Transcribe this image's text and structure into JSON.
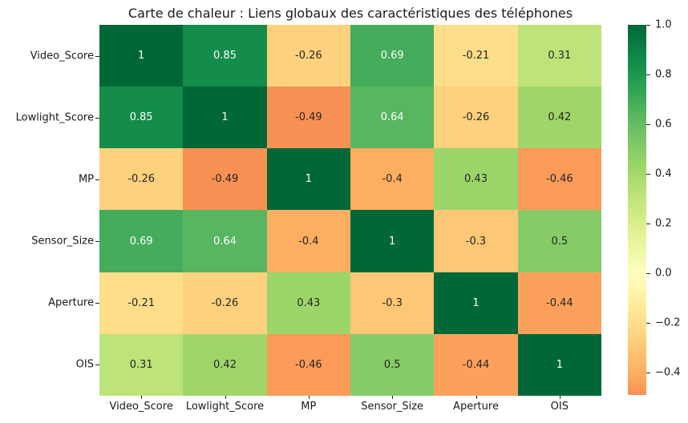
{
  "title": "Carte de chaleur : Liens globaux des caractéristiques des téléphones",
  "chart_data": {
    "type": "heatmap",
    "title": "Carte de chaleur : Liens globaux des caractéristiques des téléphones",
    "x_categories": [
      "Video_Score",
      "Lowlight_Score",
      "MP",
      "Sensor_Size",
      "Aperture",
      "OIS"
    ],
    "y_categories": [
      "Video_Score",
      "Lowlight_Score",
      "MP",
      "Sensor_Size",
      "Aperture",
      "OIS"
    ],
    "matrix": [
      [
        1,
        0.85,
        -0.26,
        0.69,
        -0.21,
        0.31
      ],
      [
        0.85,
        1,
        -0.49,
        0.64,
        -0.26,
        0.42
      ],
      [
        -0.26,
        -0.49,
        1,
        -0.4,
        0.43,
        -0.46
      ],
      [
        0.69,
        0.64,
        -0.4,
        1,
        -0.3,
        0.5
      ],
      [
        -0.21,
        -0.26,
        0.43,
        -0.3,
        1,
        -0.44
      ],
      [
        0.31,
        0.42,
        -0.46,
        0.5,
        -0.44,
        1
      ]
    ],
    "annotations_on": true,
    "grid": false,
    "colormap": {
      "name": "RdYlGn",
      "anchor_colors": [
        "#a50026",
        "#d73027",
        "#f46d43",
        "#fdae61",
        "#fee08b",
        "#ffffbf",
        "#d9ef8b",
        "#a6d96a",
        "#66bd63",
        "#1a9850",
        "#006837"
      ],
      "norm_domain": [
        -1,
        1
      ]
    },
    "colorbar": {
      "position": "right",
      "vmin": -0.49,
      "vmax": 1.0,
      "tick_values": [
        1.0,
        0.8,
        0.6,
        0.4,
        0.2,
        0.0,
        -0.2,
        -0.4
      ],
      "tick_labels": [
        "1.0",
        "0.8",
        "0.6",
        "0.4",
        "0.2",
        "0.0",
        "−0.2",
        "−0.4"
      ]
    },
    "annotation_text_colors": {
      "light": "#ffffff",
      "dark": "#262626"
    }
  }
}
